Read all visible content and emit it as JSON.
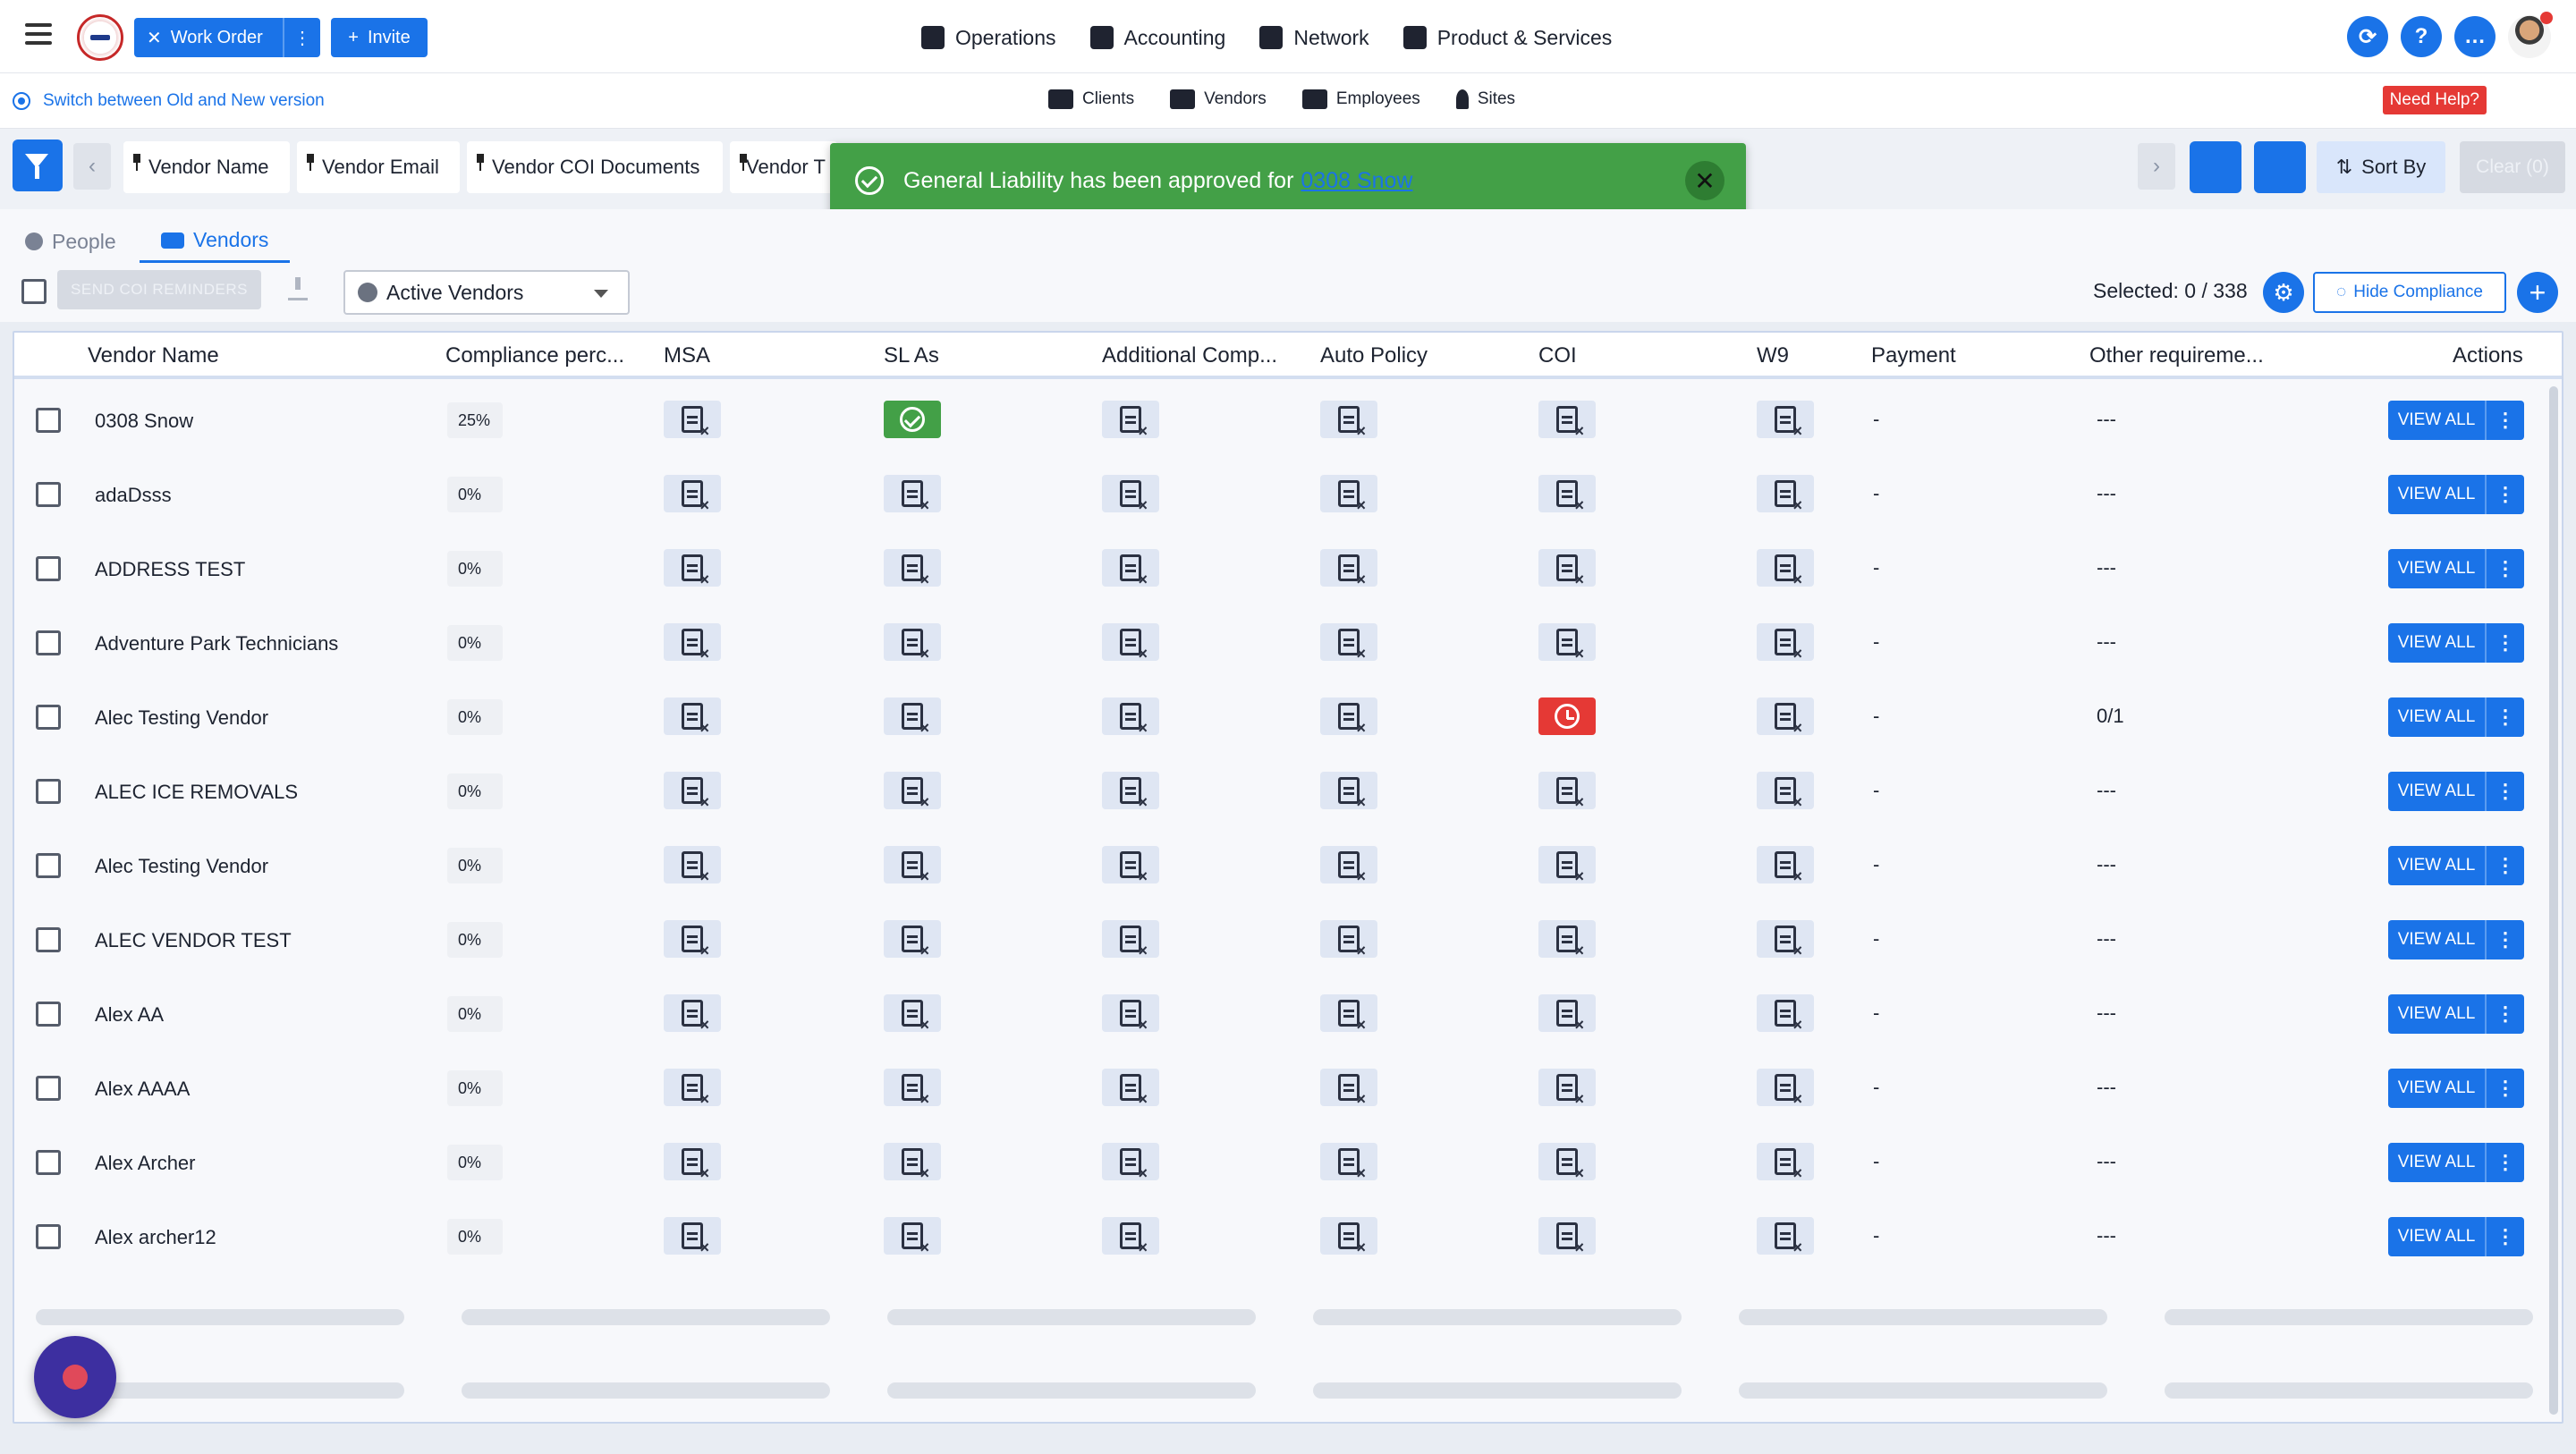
{
  "topbar": {
    "work_order_label": "Work Order",
    "invite_label": "Invite",
    "menu": [
      {
        "label": "Operations",
        "icon": "clipboard-icon"
      },
      {
        "label": "Accounting",
        "icon": "ledger-icon"
      },
      {
        "label": "Network",
        "icon": "network-icon"
      },
      {
        "label": "Product & Services",
        "icon": "briefcase-icon"
      }
    ],
    "help_glyph": "?"
  },
  "subnav": {
    "switch_version": "Switch between Old and New version",
    "tabs": [
      {
        "label": "Clients",
        "icon": "user-check-icon"
      },
      {
        "label": "Vendors",
        "icon": "truck-icon"
      },
      {
        "label": "Employees",
        "icon": "users-icon"
      },
      {
        "label": "Sites",
        "icon": "map-pin-icon"
      }
    ],
    "need_help": "Need Help?"
  },
  "chips": [
    "Vendor Name",
    "Vendor Email",
    "Vendor COI Documents",
    "Vendor T"
  ],
  "sort_by": "Sort By",
  "clear_label": "Clear (0)",
  "toast": {
    "message": "General Liability has been approved for",
    "link": "0308 Snow",
    "color": "#43a047"
  },
  "tabs": {
    "people": "People",
    "vendors": "Vendors"
  },
  "toolbar": {
    "send_reminders": "SEND COI REMINDERS",
    "filter_value": "Active Vendors",
    "selected": "Selected: 0 / 338",
    "hide_compliance": "Hide Compliance"
  },
  "columns": [
    "Vendor Name",
    "Compliance perc...",
    "MSA",
    "SL As",
    "Additional Comp...",
    "Auto Policy",
    "COI",
    "W9",
    "Payment",
    "Other requireme...",
    "Actions"
  ],
  "rows": [
    {
      "name": "0308 Snow",
      "pct": "25%",
      "status": [
        "doc",
        "ok",
        "doc",
        "doc",
        "doc",
        "doc"
      ],
      "payment": "-",
      "other": "---"
    },
    {
      "name": "adaDsss",
      "pct": "0%",
      "status": [
        "doc",
        "doc",
        "doc",
        "doc",
        "doc",
        "doc"
      ],
      "payment": "-",
      "other": "---"
    },
    {
      "name": "ADDRESS TEST",
      "pct": "0%",
      "status": [
        "doc",
        "doc",
        "doc",
        "doc",
        "doc",
        "doc"
      ],
      "payment": "-",
      "other": "---"
    },
    {
      "name": "Adventure Park Technicians",
      "pct": "0%",
      "status": [
        "doc",
        "doc",
        "doc",
        "doc",
        "doc",
        "doc"
      ],
      "payment": "-",
      "other": "---"
    },
    {
      "name": "Alec Testing Vendor",
      "pct": "0%",
      "status": [
        "doc",
        "doc",
        "doc",
        "doc",
        "clock",
        "doc"
      ],
      "payment": "-",
      "other": "0/1"
    },
    {
      "name": "ALEC ICE REMOVALS",
      "pct": "0%",
      "status": [
        "doc",
        "doc",
        "doc",
        "doc",
        "doc",
        "doc"
      ],
      "payment": "-",
      "other": "---"
    },
    {
      "name": "Alec Testing Vendor",
      "pct": "0%",
      "status": [
        "doc",
        "doc",
        "doc",
        "doc",
        "doc",
        "doc"
      ],
      "payment": "-",
      "other": "---"
    },
    {
      "name": "ALEC VENDOR TEST",
      "pct": "0%",
      "status": [
        "doc",
        "doc",
        "doc",
        "doc",
        "doc",
        "doc"
      ],
      "payment": "-",
      "other": "---"
    },
    {
      "name": "Alex AA",
      "pct": "0%",
      "status": [
        "doc",
        "doc",
        "doc",
        "doc",
        "doc",
        "doc"
      ],
      "payment": "-",
      "other": "---"
    },
    {
      "name": "Alex AAAA",
      "pct": "0%",
      "status": [
        "doc",
        "doc",
        "doc",
        "doc",
        "doc",
        "doc"
      ],
      "payment": "-",
      "other": "---"
    },
    {
      "name": "Alex Archer",
      "pct": "0%",
      "status": [
        "doc",
        "doc",
        "doc",
        "doc",
        "doc",
        "doc"
      ],
      "payment": "-",
      "other": "---"
    },
    {
      "name": "Alex archer12",
      "pct": "0%",
      "status": [
        "doc",
        "doc",
        "doc",
        "doc",
        "doc",
        "doc"
      ],
      "payment": "-",
      "other": "---"
    }
  ],
  "view_all_label": "VIEW ALL",
  "colors": {
    "primary": "#1a73e8",
    "success": "#43a047",
    "danger": "#e53935"
  }
}
